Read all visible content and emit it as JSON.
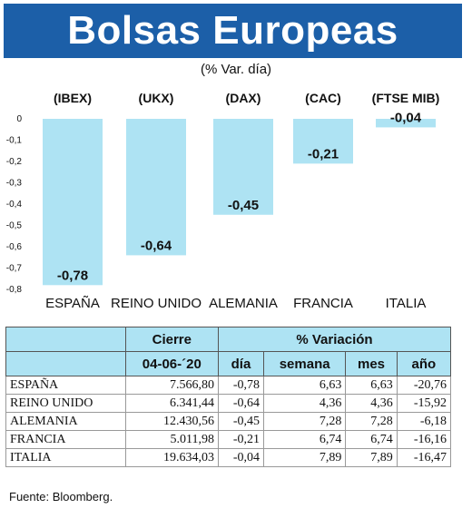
{
  "header": {
    "title": "Bolsas Europeas"
  },
  "subtitle": "(% Var. día)",
  "chart_data": {
    "type": "bar",
    "indices": [
      "(IBEX)",
      "(UKX)",
      "(DAX)",
      "(CAC)",
      "(FTSE MIB)"
    ],
    "categories": [
      "ESPAÑA",
      "REINO UNIDO",
      "ALEMANIA",
      "FRANCIA",
      "ITALIA"
    ],
    "values": [
      -0.78,
      -0.64,
      -0.45,
      -0.21,
      -0.04
    ],
    "value_labels": [
      "-0,78",
      "-0,64",
      "-0,45",
      "-0,21",
      "-0,04"
    ],
    "yticks": [
      0,
      -0.1,
      -0.2,
      -0.3,
      -0.4,
      -0.5,
      -0.6,
      -0.7,
      -0.8
    ],
    "ytick_labels": [
      "0",
      "-0,1",
      "-0,2",
      "-0,3",
      "-0,4",
      "-0,5",
      "-0,6",
      "-0,7",
      "-0,8"
    ],
    "ylim": [
      -0.8,
      0
    ],
    "bar_color": "#aee3f3",
    "grid": false
  },
  "table": {
    "cierre_label": "Cierre",
    "variacion_label": "% Variación",
    "date_label": "04-06-´20",
    "columns": [
      "día",
      "semana",
      "mes",
      "año"
    ],
    "rows": [
      {
        "name": "ESPAÑA",
        "cierre": "7.566,80",
        "dia": "-0,78",
        "semana": "6,63",
        "mes": "6,63",
        "ano": "-20,76"
      },
      {
        "name": "REINO UNIDO",
        "cierre": "6.341,44",
        "dia": "-0,64",
        "semana": "4,36",
        "mes": "4,36",
        "ano": "-15,92"
      },
      {
        "name": "ALEMANIA",
        "cierre": "12.430,56",
        "dia": "-0,45",
        "semana": "7,28",
        "mes": "7,28",
        "ano": "-6,18"
      },
      {
        "name": "FRANCIA",
        "cierre": "5.011,98",
        "dia": "-0,21",
        "semana": "6,74",
        "mes": "6,74",
        "ano": "-16,16"
      },
      {
        "name": "ITALIA",
        "cierre": "19.634,03",
        "dia": "-0,04",
        "semana": "7,89",
        "mes": "7,89",
        "ano": "-16,47"
      }
    ]
  },
  "source": "Fuente: Bloomberg.",
  "colors": {
    "header_bg": "#1c5fa8",
    "accent": "#aee3f3"
  }
}
